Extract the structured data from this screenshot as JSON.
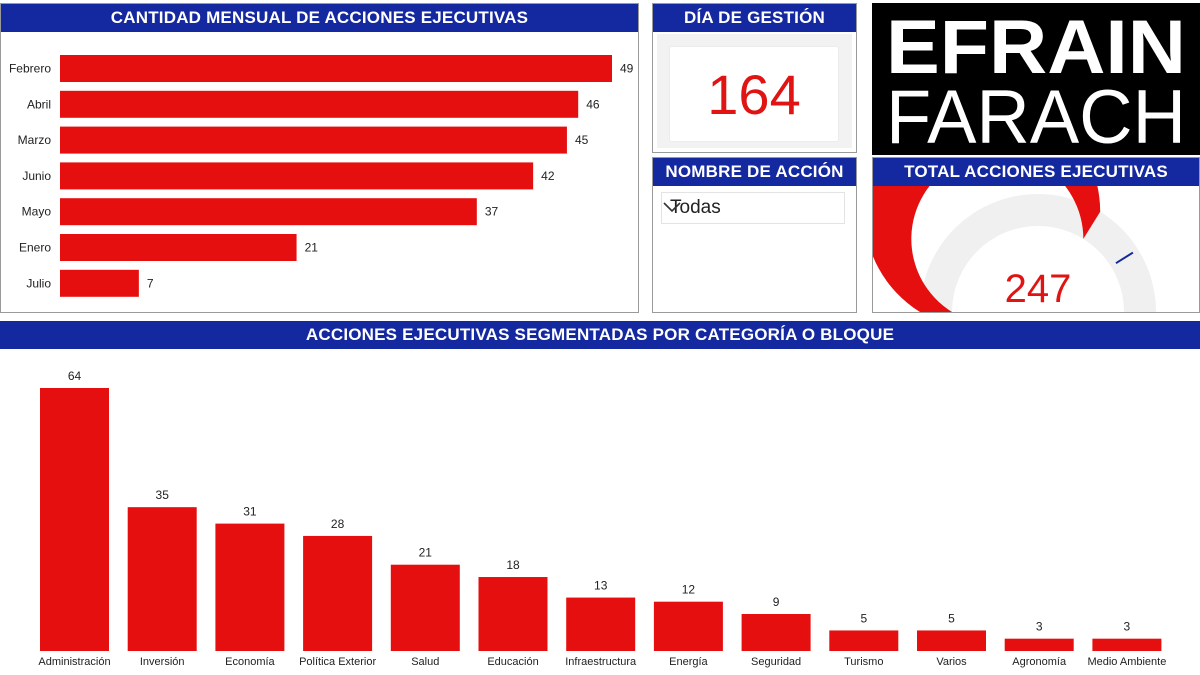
{
  "monthly_panel": {
    "title": "CANTIDAD MENSUAL DE ACCIONES EJECUTIVAS"
  },
  "day_panel": {
    "title": "DÍA DE GESTIÓN",
    "value": "164"
  },
  "filter_panel": {
    "title": "NOMBRE DE ACCIÓN",
    "selected": "Todas"
  },
  "total_panel": {
    "title": "TOTAL ACCIONES EJECUTIVAS",
    "value": "247"
  },
  "logo": {
    "line1": "EFRAIN",
    "line2": "FARACH"
  },
  "category_panel": {
    "title": "ACCIONES EJECUTIVAS SEGMENTADAS POR CATEGORÍA O BLOQUE"
  },
  "colors": {
    "bar": "#e60f0f",
    "header": "#1428a0",
    "gauge_track": "#f0f0f0",
    "gauge_target": "#1428a0"
  },
  "chart_data": [
    {
      "type": "bar",
      "orientation": "horizontal",
      "title": "CANTIDAD MENSUAL DE ACCIONES EJECUTIVAS",
      "categories": [
        "Febrero",
        "Abril",
        "Marzo",
        "Junio",
        "Mayo",
        "Enero",
        "Julio"
      ],
      "values": [
        49,
        46,
        45,
        42,
        37,
        21,
        7
      ],
      "xlim": [
        0,
        49
      ]
    },
    {
      "type": "gauge",
      "title": "TOTAL ACCIONES EJECUTIVAS",
      "value": 247,
      "max": 365,
      "target": 300
    },
    {
      "type": "bar",
      "orientation": "vertical",
      "title": "ACCIONES EJECUTIVAS SEGMENTADAS POR CATEGORÍA O BLOQUE",
      "categories": [
        "Administración",
        "Inversión",
        "Economía",
        "Política Exterior",
        "Salud",
        "Educación",
        "Infraestructura",
        "Energía",
        "Seguridad",
        "Turismo",
        "Varios",
        "Agronomía",
        "Medio Ambiente"
      ],
      "values": [
        64,
        35,
        31,
        28,
        21,
        18,
        13,
        12,
        9,
        5,
        5,
        3,
        3
      ],
      "ylim": [
        0,
        64
      ]
    }
  ]
}
